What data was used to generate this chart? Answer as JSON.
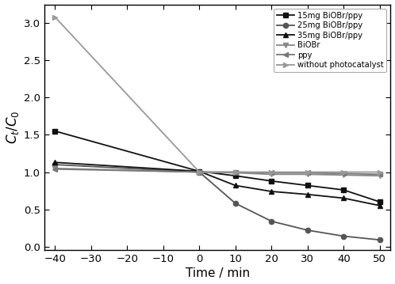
{
  "title": "",
  "xlabel": "Time / min",
  "ylabel": "$C_t$/$C_0$",
  "xlim": [
    -43,
    53
  ],
  "ylim": [
    -0.05,
    3.25
  ],
  "xticks": [
    -40,
    -30,
    -20,
    -10,
    0,
    10,
    20,
    30,
    40,
    50
  ],
  "yticks": [
    0.0,
    0.5,
    1.0,
    1.5,
    2.0,
    2.5,
    3.0
  ],
  "series": [
    {
      "label": "15mg BiOBr/ppy",
      "color": "#111111",
      "marker": "s",
      "marker_size": 4.5,
      "linewidth": 1.3,
      "x": [
        -40,
        0,
        10,
        20,
        30,
        40,
        50
      ],
      "y": [
        1.55,
        1.01,
        0.95,
        0.88,
        0.82,
        0.76,
        0.6
      ]
    },
    {
      "label": "25mg BiOBr/ppy",
      "color": "#555555",
      "marker": "o",
      "marker_size": 4.5,
      "linewidth": 1.3,
      "x": [
        -40,
        0,
        10,
        20,
        30,
        40,
        50
      ],
      "y": [
        1.1,
        1.0,
        0.58,
        0.34,
        0.22,
        0.14,
        0.09
      ]
    },
    {
      "label": "35mg BiOBr/ppy",
      "color": "#111111",
      "marker": "^",
      "marker_size": 4.5,
      "linewidth": 1.3,
      "x": [
        -40,
        0,
        10,
        20,
        30,
        40,
        50
      ],
      "y": [
        1.13,
        1.01,
        0.82,
        0.74,
        0.7,
        0.65,
        0.55
      ]
    },
    {
      "label": "BiOBr",
      "color": "#888888",
      "marker": "v",
      "marker_size": 4.5,
      "linewidth": 1.3,
      "x": [
        -40,
        0,
        10,
        20,
        30,
        40,
        50
      ],
      "y": [
        1.05,
        1.0,
        0.99,
        0.97,
        0.97,
        0.96,
        0.95
      ]
    },
    {
      "label": "ppy",
      "color": "#777777",
      "marker": "<",
      "marker_size": 4.5,
      "linewidth": 1.3,
      "x": [
        -40,
        0,
        10,
        20,
        30,
        40,
        50
      ],
      "y": [
        1.04,
        1.0,
        1.0,
        0.99,
        0.99,
        0.98,
        0.97
      ]
    },
    {
      "label": "without photocatalyst",
      "color": "#999999",
      "marker": ">",
      "marker_size": 4.5,
      "linewidth": 1.3,
      "x": [
        -40,
        0,
        10,
        20,
        30,
        40,
        50
      ],
      "y": [
        3.08,
        1.0,
        1.0,
        1.0,
        1.0,
        1.0,
        1.0
      ]
    }
  ],
  "figsize": [
    4.98,
    3.59
  ],
  "dpi": 100,
  "background_color": "#ffffff"
}
